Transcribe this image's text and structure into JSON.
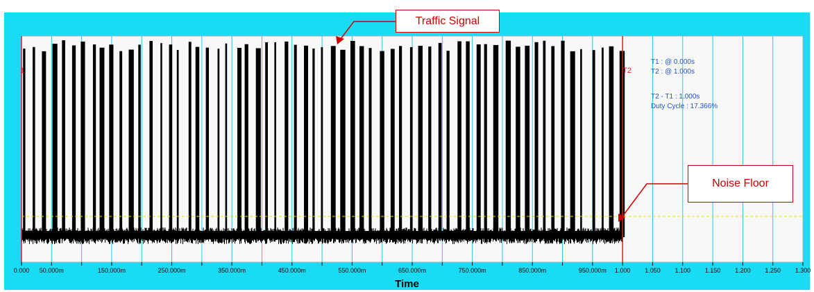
{
  "chart_data": {
    "type": "line",
    "title": "",
    "xlabel": "Time",
    "ylabel": "",
    "xlim": [
      0,
      1.3
    ],
    "x_ticks": [
      0.0,
      0.05,
      0.1,
      0.15,
      0.2,
      0.25,
      0.3,
      0.35,
      0.4,
      0.45,
      0.5,
      0.55,
      0.6,
      0.65,
      0.7,
      0.75,
      0.8,
      0.85,
      0.9,
      0.95,
      1.0,
      1.05,
      1.1,
      1.15,
      1.2,
      1.25,
      1.3
    ],
    "x_tick_labels": [
      "0.000",
      "50.000m",
      "",
      "150.000m",
      "",
      "250.000m",
      "",
      "350.000m",
      "",
      "450.000m",
      "",
      "550.000m",
      "",
      "650.000m",
      "",
      "750.000m",
      "",
      "850.000m",
      "",
      "950.000m",
      "1.000",
      "1.050",
      "1.100",
      "1.150",
      "1.200",
      "1.250",
      "1.300"
    ],
    "grid": true,
    "series": [
      {
        "kind": "burst-signal",
        "x_range": [
          0.0,
          1.0
        ],
        "approx_burst_count": 63,
        "color": "#000000"
      }
    ],
    "threshold_line": {
      "level": "noise floor threshold",
      "color": "#e8e200",
      "style": "dashed"
    },
    "cursors": [
      {
        "label": "T1",
        "x": 0.0,
        "color": "#e02020"
      },
      {
        "label": "T2",
        "x": 1.0,
        "color": "#e02020"
      }
    ],
    "annotations": [
      "Traffic Signal",
      "Noise Floor"
    ]
  },
  "callouts": {
    "traffic_signal": "Traffic Signal",
    "noise_floor": "Noise Floor"
  },
  "readout": {
    "t1": "T1 : @ 0.000s",
    "t2": "T2 : @ 1.000s",
    "delta": "T2 - T1 : 1.000s",
    "duty_cycle": "Duty Cycle : 17.366%"
  },
  "colors": {
    "frame": "#19dcf4",
    "plot_bg": "#f8f8f8",
    "grid": "#28c8e8",
    "signal": "#000000",
    "cursor": "#e02020",
    "threshold": "#e8e200",
    "readout_text": "#1e50dc",
    "callout": "#cc0000"
  }
}
